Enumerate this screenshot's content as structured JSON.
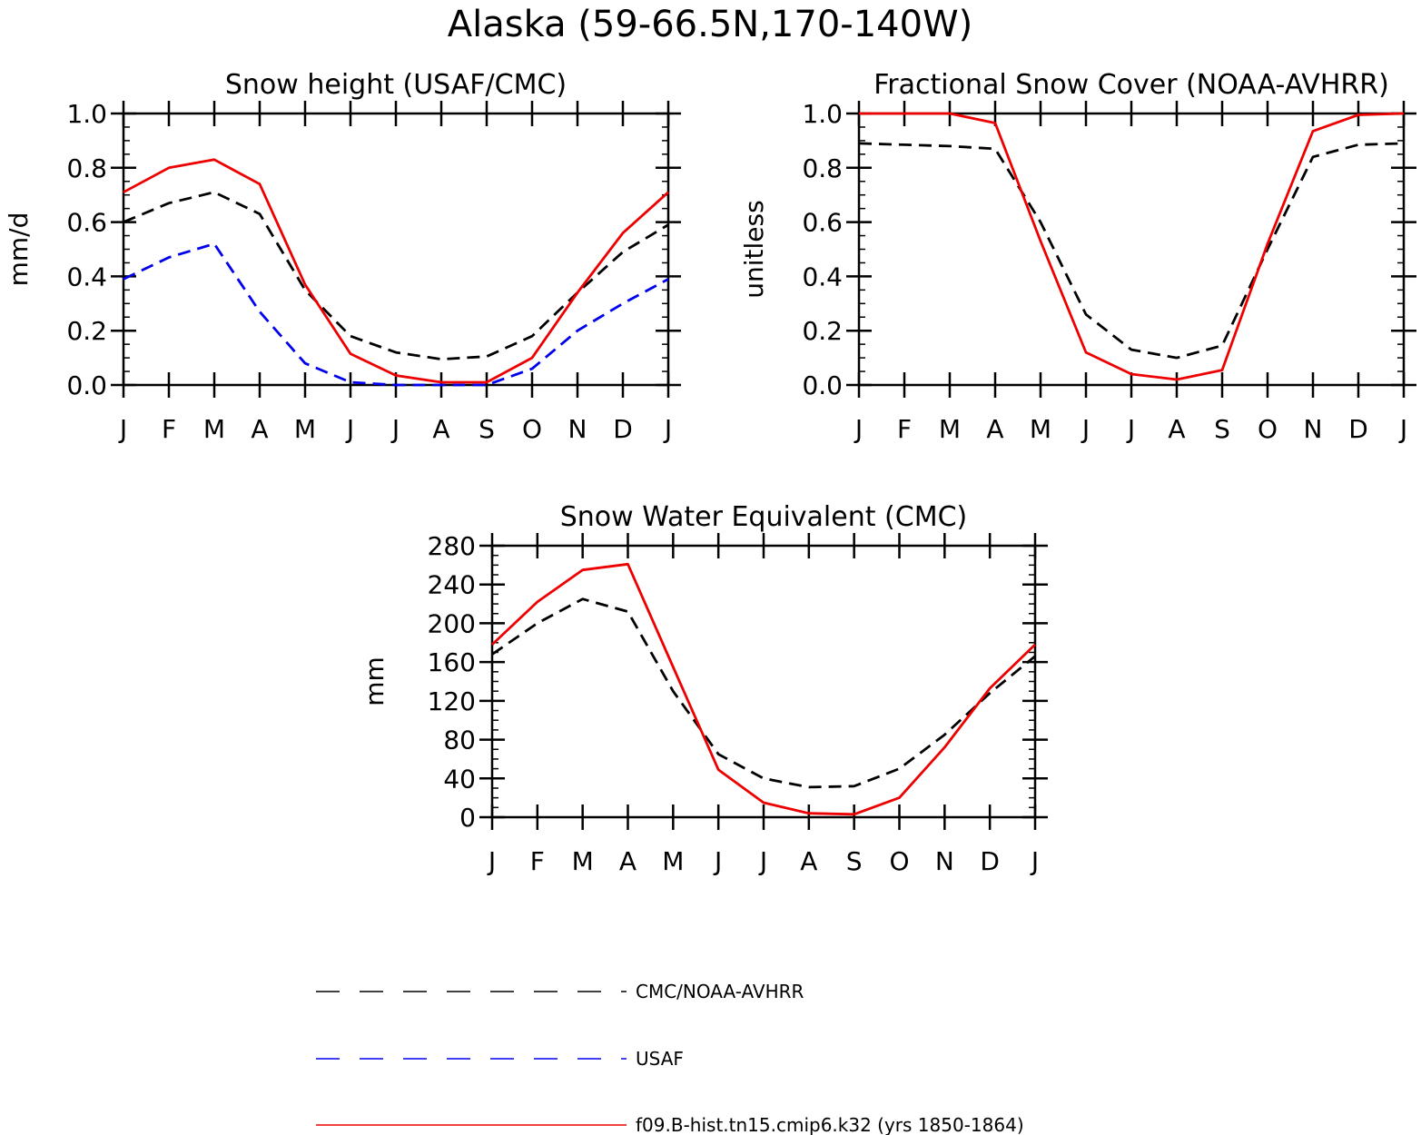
{
  "title": "Alaska (59-66.5N,170-140W)",
  "months": [
    "J",
    "F",
    "M",
    "A",
    "M",
    "J",
    "J",
    "A",
    "S",
    "O",
    "N",
    "D",
    "J"
  ],
  "colors": {
    "obs": "#000000",
    "usaf": "#0000ee",
    "model": "#ee0000"
  },
  "legend": [
    {
      "label": "CMC/NOAA-AVHRR",
      "color": "#000000",
      "style": "dashed"
    },
    {
      "label": "USAF",
      "color": "#0000ee",
      "style": "dashed"
    },
    {
      "label": "f09.B-hist.tn15.cmip6.k32 (yrs 1850-1864)",
      "color": "#ee0000",
      "style": "solid"
    }
  ],
  "chart_data": [
    {
      "type": "line",
      "title": "Snow height (USAF/CMC)",
      "ylabel": "mm/d",
      "ylim": [
        0,
        1.0
      ],
      "yticks": [
        "0.0",
        "0.2",
        "0.4",
        "0.6",
        "0.8",
        "1.0"
      ],
      "yminor": 0.05,
      "series": [
        {
          "name": "CMC/NOAA-AVHRR",
          "color": "#000000",
          "dash": true,
          "values": [
            0.6,
            0.67,
            0.71,
            0.63,
            0.35,
            0.18,
            0.12,
            0.095,
            0.105,
            0.18,
            0.34,
            0.49,
            0.59
          ]
        },
        {
          "name": "USAF",
          "color": "#0000ee",
          "dash": true,
          "values": [
            0.39,
            0.47,
            0.52,
            0.27,
            0.08,
            0.01,
            0.0,
            0.0,
            0.0,
            0.06,
            0.2,
            0.3,
            0.39
          ]
        },
        {
          "name": "f09.B-hist.tn15.cmip6.k32 (yrs 1850-1864)",
          "color": "#ee0000",
          "dash": false,
          "values": [
            0.71,
            0.8,
            0.83,
            0.74,
            0.37,
            0.115,
            0.035,
            0.01,
            0.01,
            0.1,
            0.34,
            0.56,
            0.71
          ]
        }
      ]
    },
    {
      "type": "line",
      "title": "Fractional Snow Cover (NOAA-AVHRR)",
      "ylabel": "unitless",
      "ylim": [
        0,
        1.0
      ],
      "yticks": [
        "0.0",
        "0.2",
        "0.4",
        "0.6",
        "0.8",
        "1.0"
      ],
      "yminor": 0.05,
      "series": [
        {
          "name": "CMC/NOAA-AVHRR",
          "color": "#000000",
          "dash": true,
          "values": [
            0.89,
            0.885,
            0.88,
            0.87,
            0.6,
            0.26,
            0.13,
            0.1,
            0.145,
            0.5,
            0.84,
            0.885,
            0.89
          ]
        },
        {
          "name": "f09.B-hist.tn15.cmip6.k32 (yrs 1850-1864)",
          "color": "#ee0000",
          "dash": false,
          "values": [
            1.0,
            1.0,
            1.0,
            0.965,
            0.53,
            0.12,
            0.04,
            0.02,
            0.055,
            0.52,
            0.935,
            0.995,
            1.0
          ]
        }
      ]
    },
    {
      "type": "line",
      "title": "Snow Water Equivalent (CMC)",
      "ylabel": "mm",
      "ylim": [
        0,
        280
      ],
      "yticks": [
        "0",
        "40",
        "80",
        "120",
        "160",
        "200",
        "240",
        "280"
      ],
      "yminor": 10,
      "series": [
        {
          "name": "CMC/NOAA-AVHRR",
          "color": "#000000",
          "dash": true,
          "values": [
            168,
            200,
            225,
            212,
            130,
            65,
            40,
            31,
            32,
            50,
            85,
            128,
            166
          ]
        },
        {
          "name": "f09.B-hist.tn15.cmip6.k32 (yrs 1850-1864)",
          "color": "#ee0000",
          "dash": false,
          "values": [
            178,
            222,
            255,
            261,
            155,
            49,
            15,
            4,
            3,
            20,
            72,
            133,
            178
          ]
        }
      ]
    }
  ]
}
